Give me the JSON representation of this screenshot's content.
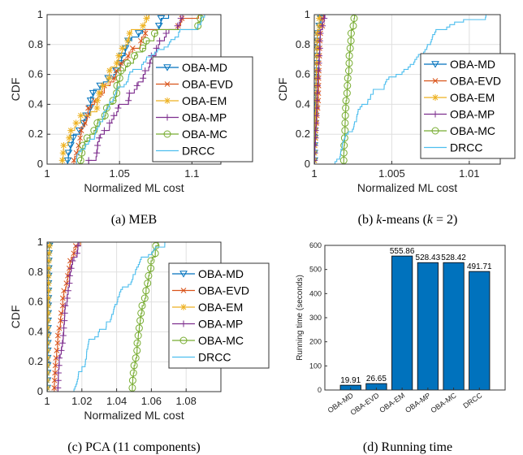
{
  "legend_labels": [
    "OBA-MD",
    "OBA-EVD",
    "OBA-EM",
    "OBA-MP",
    "OBA-MC",
    "DRCC"
  ],
  "colors": {
    "OBA-MD": "#0072BD",
    "OBA-EVD": "#D95319",
    "OBA-EM": "#EDB120",
    "OBA-MP": "#7E2F8E",
    "OBA-MC": "#77AC30",
    "DRCC": "#4DBEEE",
    "bar": "#0072BD"
  },
  "chart_data": [
    {
      "type": "line",
      "caption": "(a) MEB",
      "xlabel": "Normalized ML cost",
      "ylabel": "CDF",
      "xlim": [
        1,
        1.12
      ],
      "ylim": [
        0,
        1
      ],
      "xticks": [
        "1",
        "1.05",
        "1.1"
      ],
      "yticks": [
        "0",
        "0.2",
        "0.4",
        "0.6",
        "0.8",
        "1"
      ],
      "legend": "inside-lower-right",
      "series": [
        {
          "name": "OBA-MD",
          "ranges": [
            [
              1.013,
              1.068
            ],
            [
              1.077,
              1.085
            ]
          ]
        },
        {
          "name": "OBA-EVD",
          "ranges": [
            [
              1.018,
              1.07
            ],
            [
              1.09,
              1.105
            ]
          ]
        },
        {
          "name": "OBA-EM",
          "ranges": [
            [
              1.01,
              1.06
            ],
            [
              1.066,
              1.072
            ]
          ]
        },
        {
          "name": "OBA-MP",
          "ranges": [
            [
              1.028,
              1.085
            ],
            [
              1.09,
              1.095
            ]
          ]
        },
        {
          "name": "OBA-MC",
          "ranges": [
            [
              1.023,
              1.08
            ],
            [
              1.104,
              1.112
            ]
          ]
        },
        {
          "name": "DRCC",
          "ranges": [
            [
              1.02,
              1.092
            ],
            [
              1.103,
              1.11
            ]
          ]
        }
      ]
    },
    {
      "type": "line",
      "caption": "(b) k-means (k = 2)",
      "xlabel": "Normalized ML cost",
      "ylabel": "CDF",
      "xlim": [
        1,
        1.012
      ],
      "ylim": [
        0,
        1
      ],
      "xticks": [
        "1",
        "1.005",
        "1.01"
      ],
      "yticks": [
        "0",
        "0.2",
        "0.4",
        "0.6",
        "0.8",
        "1"
      ],
      "legend": "inside-right",
      "series": [
        {
          "name": "OBA-MD",
          "ranges": [
            [
              1.0,
              1.0002
            ],
            [
              1.0003,
              1.0005
            ]
          ]
        },
        {
          "name": "OBA-EVD",
          "ranges": [
            [
              1.0,
              1.0004
            ],
            [
              1.0005,
              1.0007
            ]
          ]
        },
        {
          "name": "OBA-EM",
          "ranges": [
            [
              1.0,
              1.0002
            ],
            [
              1.0003,
              1.0004
            ]
          ]
        },
        {
          "name": "OBA-MP",
          "ranges": [
            [
              1.0,
              1.0004
            ],
            [
              1.0005,
              1.0007
            ]
          ]
        },
        {
          "name": "OBA-MC",
          "ranges": [
            [
              1.0019,
              1.0024
            ],
            [
              1.0025,
              1.0026
            ]
          ]
        },
        {
          "name": "DRCC",
          "ranges": [
            [
              1.0013,
              1.008
            ],
            [
              1.0083,
              1.012
            ]
          ]
        }
      ]
    },
    {
      "type": "line",
      "caption": "(c) PCA (11 components)",
      "xlabel": "Normalized ML cost",
      "ylabel": "CDF",
      "xlim": [
        1,
        1.1
      ],
      "ylim": [
        0,
        1
      ],
      "xticks": [
        "1",
        "1.02",
        "1.04",
        "1.06",
        "1.08"
      ],
      "yticks": [
        "0",
        "0.2",
        "0.4",
        "0.6",
        "0.8",
        "1"
      ],
      "legend": "inside-right",
      "series": [
        {
          "name": "OBA-MD",
          "ranges": [
            [
              1.0,
              1.001
            ],
            [
              1.001,
              1.002
            ]
          ]
        },
        {
          "name": "OBA-EVD",
          "ranges": [
            [
              1.004,
              1.014
            ],
            [
              1.015,
              1.02
            ]
          ]
        },
        {
          "name": "OBA-EM",
          "ranges": [
            [
              1.0,
              1.001
            ],
            [
              1.001,
              1.002
            ]
          ]
        },
        {
          "name": "OBA-MP",
          "ranges": [
            [
              1.006,
              1.016
            ],
            [
              1.017,
              1.019
            ]
          ]
        },
        {
          "name": "OBA-MC",
          "ranges": [
            [
              1.049,
              1.061
            ],
            [
              1.062,
              1.064
            ]
          ]
        },
        {
          "name": "DRCC",
          "ranges": [
            [
              1.015,
              1.055
            ],
            [
              1.058,
              1.068
            ]
          ]
        }
      ]
    },
    {
      "type": "bar",
      "caption": "(d) Running time",
      "ylabel": "Running time (seconds)",
      "categories": [
        "OBA-MD",
        "OBA-EVD",
        "OBA-EM",
        "OBA-MP",
        "OBA-MC",
        "DRCC"
      ],
      "values": [
        19.91,
        26.65,
        555.86,
        528.43,
        528.42,
        491.71
      ],
      "value_labels": [
        "19.91",
        "26.65",
        "555.86",
        "528.43",
        "528.42",
        "491.71"
      ],
      "ylim": [
        0,
        600
      ],
      "yticks": [
        "0",
        "100",
        "200",
        "300",
        "400",
        "500",
        "600"
      ]
    }
  ]
}
